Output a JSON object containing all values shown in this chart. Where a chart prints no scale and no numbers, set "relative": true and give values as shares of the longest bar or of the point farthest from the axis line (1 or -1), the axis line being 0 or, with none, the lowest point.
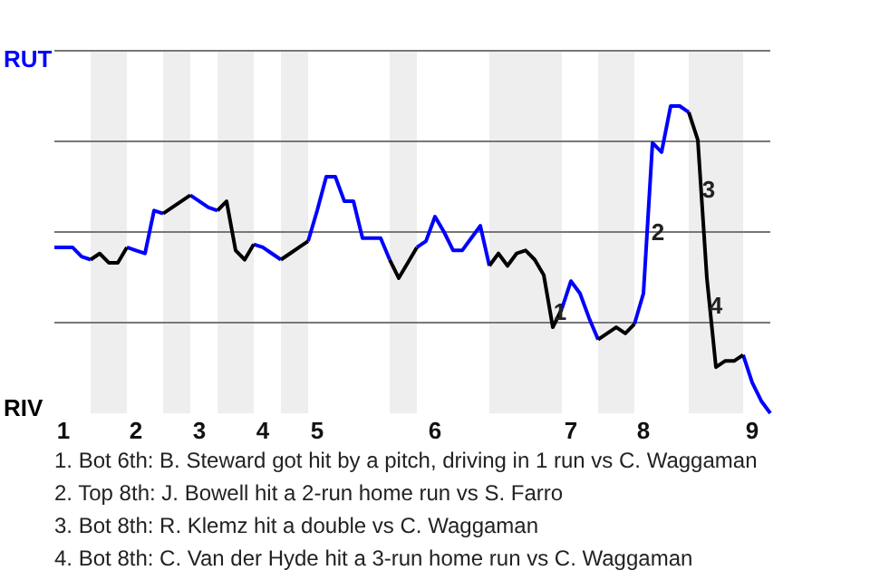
{
  "chart_data": {
    "type": "line",
    "relative": true,
    "categories": [
      null,
      "1",
      null,
      null,
      null,
      null,
      null,
      null,
      null,
      "2",
      null,
      null,
      null,
      null,
      null,
      null,
      "3",
      null,
      null,
      null,
      null,
      null,
      null,
      "4",
      null,
      null,
      null,
      null,
      null,
      "5",
      null,
      null,
      null,
      null,
      null,
      null,
      null,
      null,
      null,
      null,
      null,
      null,
      "6",
      null,
      null,
      null,
      null,
      null,
      null,
      null,
      null,
      null,
      null,
      null,
      null,
      null,
      null,
      "7",
      null,
      null,
      null,
      null,
      null,
      null,
      null,
      "8",
      null,
      null,
      null,
      null,
      null,
      null,
      null,
      null,
      null,
      null,
      null,
      "9",
      null,
      null
    ],
    "grid": "y",
    "legend": "left",
    "line_style": "solid",
    "series": [
      {
        "name": "RUT",
        "color": "#0000ff",
        "values": [
          0.54,
          0.54,
          0.54,
          0.51,
          0.5,
          null,
          null,
          null,
          0.54,
          0.53,
          0.52,
          0.66,
          0.65,
          null,
          null,
          0.71,
          0.69,
          0.67,
          0.66,
          null,
          null,
          null,
          0.55,
          0.54,
          0.52,
          0.5,
          null,
          null,
          0.56,
          0.66,
          0.77,
          0.77,
          0.69,
          0.69,
          0.57,
          0.57,
          0.57,
          0.5,
          null,
          null,
          0.54,
          0.56,
          0.64,
          0.59,
          0.53,
          0.53,
          0.57,
          0.61,
          0.48,
          null,
          null,
          null,
          null,
          null,
          null,
          null,
          0.34,
          0.43,
          0.39,
          0.31,
          0.24,
          null,
          null,
          null,
          0.29,
          0.39,
          0.88,
          0.85,
          1,
          1,
          0.98,
          null,
          null,
          null,
          null,
          null,
          0.19,
          0.1,
          0.04,
          0
        ]
      },
      {
        "name": "RIV",
        "color": "#000000",
        "values": [
          null,
          null,
          null,
          null,
          0.5,
          0.52,
          0.49,
          0.49,
          0.54,
          null,
          null,
          null,
          0.65,
          0.67,
          0.69,
          0.71,
          null,
          null,
          0.66,
          0.69,
          0.53,
          0.5,
          0.55,
          null,
          null,
          0.5,
          0.52,
          0.54,
          0.56,
          null,
          null,
          null,
          null,
          null,
          null,
          null,
          null,
          0.5,
          0.44,
          0.49,
          0.54,
          null,
          null,
          null,
          null,
          null,
          null,
          null,
          0.48,
          0.52,
          0.48,
          0.52,
          0.53,
          0.5,
          0.45,
          0.28,
          0.34,
          null,
          null,
          null,
          0.24,
          0.26,
          0.28,
          0.26,
          0.29,
          null,
          null,
          null,
          null,
          null,
          0.98,
          0.89,
          0.44,
          0.15,
          0.17,
          0.17,
          0.19,
          null,
          null,
          null
        ]
      }
    ],
    "annotations": [
      {
        "text": "1",
        "y": 0.33
      },
      {
        "text": "2",
        "y": 0.59
      },
      {
        "text": "3",
        "y": 0.73
      },
      {
        "text": "4",
        "y": 0.35
      },
      "1. Bot 6th: B. Steward got hit by a pitch, driving in 1 run vs C. Waggaman",
      "2. Top 8th: J. Bowell hit a 2-run home run vs S. Farro",
      "3. Bot 8th: R. Klemz hit a double vs C. Waggaman",
      "4. Bot 8th: C. Van der Hyde hit a 3-run home run vs C. Waggaman"
    ]
  }
}
